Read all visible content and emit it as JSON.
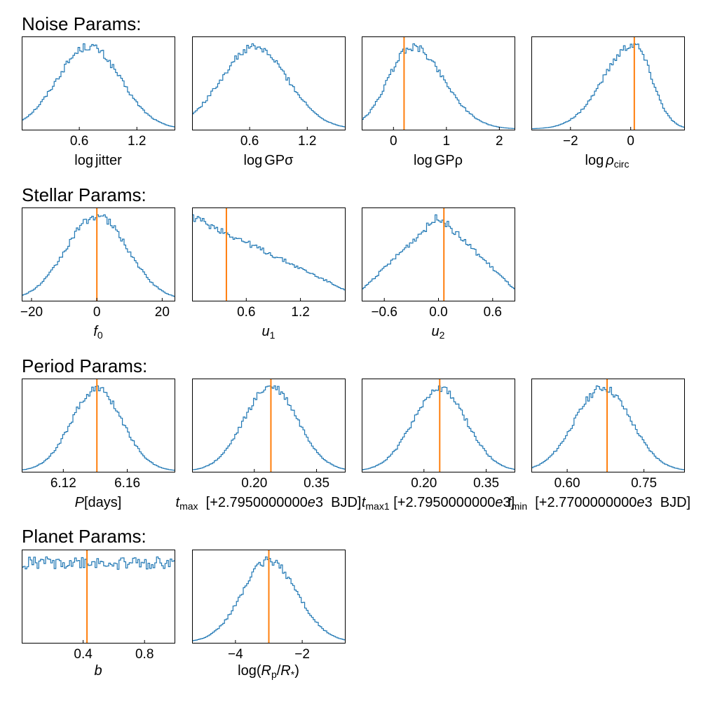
{
  "sections": [
    {
      "title": "Noise Params:"
    },
    {
      "title": "Stellar Params:"
    },
    {
      "title": "Period Params:"
    },
    {
      "title": "Planet Params:"
    }
  ],
  "colors": {
    "histogram": "#1f77b4",
    "truth_line": "#ff7f0e",
    "axis": "#000000"
  },
  "chart_data": [
    {
      "type": "histogram",
      "section": "Noise Params:",
      "xlabel": "log jitter",
      "xlim": [
        0.0,
        1.6
      ],
      "xticks": [
        0.6,
        1.2
      ],
      "xtick_labels": [
        "0.6",
        "1.2"
      ],
      "shape": "gaussian",
      "peak": 0.7,
      "width": 0.33,
      "truth": null
    },
    {
      "type": "histogram",
      "section": "Noise Params:",
      "xlabel": "log GPσ",
      "xlim": [
        0.0,
        1.6
      ],
      "xticks": [
        0.6,
        1.2
      ],
      "xtick_labels": [
        "0.6",
        "1.2"
      ],
      "shape": "gaussian",
      "peak": 0.65,
      "width": 0.35,
      "truth": null
    },
    {
      "type": "histogram",
      "section": "Noise Params:",
      "xlabel": "log GPρ",
      "xlim": [
        -0.6,
        2.3
      ],
      "xticks": [
        0,
        1,
        2
      ],
      "xtick_labels": [
        "0",
        "1",
        "2"
      ],
      "shape": "skew",
      "peak": 0.35,
      "width_left": 0.45,
      "width_right": 0.6,
      "truth": 0.2
    },
    {
      "type": "histogram",
      "section": "Noise Params:",
      "xlabel": "log ρ_circ",
      "xlim": [
        -3.3,
        1.8
      ],
      "xticks": [
        -2,
        0
      ],
      "xtick_labels": [
        "−2",
        "0"
      ],
      "shape": "skew",
      "peak": 0.1,
      "width_left": 1.0,
      "width_right": 0.6,
      "truth": 0.12
    },
    {
      "type": "histogram",
      "section": "Stellar Params:",
      "xlabel": "f_0",
      "xlim": [
        -23.0,
        24.0
      ],
      "xticks": [
        -20,
        0,
        20
      ],
      "xtick_labels": [
        "−20",
        "0",
        "20"
      ],
      "shape": "gaussian",
      "peak": 0.0,
      "width": 9.5,
      "truth": 0.0
    },
    {
      "type": "histogram",
      "section": "Stellar Params:",
      "xlabel": "u_1",
      "xlim": [
        0.0,
        1.7
      ],
      "xticks": [
        0.6,
        1.2
      ],
      "xtick_labels": [
        "0.6",
        "1.2"
      ],
      "shape": "linear",
      "start": 1.0,
      "end": 0.12,
      "truth": 0.38
    },
    {
      "type": "histogram",
      "section": "Stellar Params:",
      "xlabel": "u_2",
      "xlim": [
        -0.85,
        0.85
      ],
      "xticks": [
        -0.6,
        0.0,
        0.6
      ],
      "xtick_labels": [
        "−0.6",
        "0.0",
        "0.6"
      ],
      "shape": "triangle",
      "peak": 0.0,
      "truth": 0.06
    },
    {
      "type": "histogram",
      "section": "Period Params:",
      "xlabel": "P[days]",
      "xlim": [
        6.094,
        6.19
      ],
      "xticks": [
        6.12,
        6.16
      ],
      "xtick_labels": [
        "6.12",
        "6.16"
      ],
      "shape": "gaussian",
      "peak": 6.141,
      "width": 0.016,
      "truth": 6.141
    },
    {
      "type": "histogram",
      "section": "Period Params:",
      "xlabel": "t_max [+2.7950000000e3 BJD]",
      "xlim": [
        0.05,
        0.42
      ],
      "xticks": [
        0.2,
        0.35
      ],
      "xtick_labels": [
        "0.20",
        "0.35"
      ],
      "shape": "gaussian",
      "peak": 0.24,
      "width": 0.065,
      "truth": 0.24
    },
    {
      "type": "histogram",
      "section": "Period Params:",
      "xlabel": "t_max_1 [+2.7950000000e3]",
      "xlim": [
        0.05,
        0.42
      ],
      "xticks": [
        0.2,
        0.35
      ],
      "xtick_labels": [
        "0.20",
        "0.35"
      ],
      "shape": "gaussian",
      "peak": 0.238,
      "width": 0.065,
      "truth": 0.238
    },
    {
      "type": "histogram",
      "section": "Period Params:",
      "xlabel": "t_min [+2.7700000000e3 BJD]",
      "xlim": [
        0.53,
        0.83
      ],
      "xticks": [
        0.6,
        0.75
      ],
      "xtick_labels": [
        "0.60",
        "0.75"
      ],
      "shape": "gaussian",
      "peak": 0.67,
      "width": 0.055,
      "truth": 0.678
    },
    {
      "type": "histogram",
      "section": "Planet Params:",
      "xlabel": "b",
      "xlim": [
        0.0,
        1.0
      ],
      "xticks": [
        0.4,
        0.8
      ],
      "xtick_labels": [
        "0.4",
        "0.8"
      ],
      "shape": "uniform",
      "truth": 0.425
    },
    {
      "type": "histogram",
      "section": "Planet Params:",
      "xlabel": "log(R_p/R_*)",
      "xlim": [
        -5.3,
        -0.7
      ],
      "xticks": [
        -4,
        -2
      ],
      "xtick_labels": [
        "−4",
        "−2"
      ],
      "shape": "skew",
      "peak": -3.0,
      "width_left": 0.8,
      "width_right": 0.85,
      "truth": -3.0
    }
  ]
}
